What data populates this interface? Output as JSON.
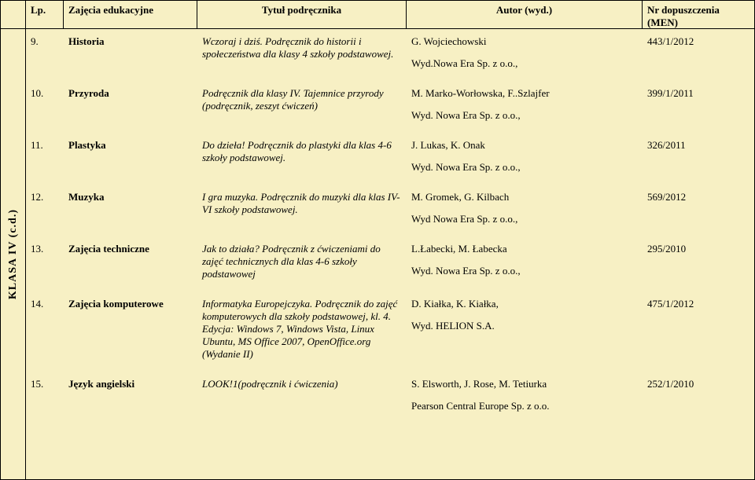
{
  "bg": "#f7f0c4",
  "header": {
    "lp": "Lp.",
    "subject": "Zajęcia edukacyjne",
    "title": "Tytuł podręcznika",
    "author": "Autor (wyd.)",
    "nr": "Nr dopuszczenia (MEN)"
  },
  "sidebar_label": "KLASA IV (c.d.)",
  "rows": [
    {
      "lp": "9.",
      "subject": "Historia",
      "title": "Wczoraj i dziś. Podręcznik do historii i społeczeństwa dla klasy 4 szkoły podstawowej.",
      "author": "G. Wojciechowski",
      "publisher": "Wyd.Nowa Era Sp. z o.o.,",
      "nr": "443/1/2012"
    },
    {
      "lp": "10.",
      "subject": "Przyroda",
      "title": "Podręcznik dla klasy IV. Tajemnice przyrody (podręcznik, zeszyt ćwiczeń)",
      "author": "M. Marko-Worłowska, F..Szlajfer",
      "publisher": "Wyd. Nowa Era  Sp. z o.o.,",
      "nr": "399/1/2011"
    },
    {
      "lp": "11.",
      "subject": "Plastyka",
      "title": "Do dzieła! Podręcznik do plastyki dla klas 4-6 szkoły podstawowej.",
      "author": "J. Lukas, K. Onak",
      "publisher": "Wyd. Nowa Era Sp. z o.o.,",
      "nr": "326/2011"
    },
    {
      "lp": "12.",
      "subject": "Muzyka",
      "title": "I gra muzyka. Podręcznik do muzyki dla klas IV-VI szkoły podstawowej.",
      "author": "M. Gromek, G. Kilbach",
      "publisher": "Wyd Nowa Era Sp. z o.o.,",
      "nr": "569/2012"
    },
    {
      "lp": "13.",
      "subject": "Zajęcia techniczne",
      "title": "Jak to działa? Podręcznik z ćwiczeniami do zajęć technicznych dla klas 4-6 szkoły podstawowej",
      "author": "L.Łabecki, M. Łabecka",
      "publisher": "Wyd. Nowa Era Sp. z o.o.,",
      "nr": "295/2010"
    },
    {
      "lp": "14.",
      "subject": "Zajęcia komputerowe",
      "title": "Informatyka Europejczyka. Podręcznik do zajęć komputerowych dla szkoły podstawowej, kl. 4. Edycja: Windows 7, Windows Vista, Linux Ubuntu, MS Office 2007, OpenOffice.org (Wydanie II)",
      "author": "D. Kiałka, K. Kiałka,",
      "publisher": "Wyd. HELION S.A.",
      "nr": "475/1/2012"
    },
    {
      "lp": "15.",
      "subject": "Język angielski",
      "title": "LOOK!1(podręcznik i ćwiczenia)",
      "author": "S. Elsworth, J. Rose, M. Tetiurka",
      "publisher": "Pearson Central Europe Sp. z o.o.",
      "nr": "252/1/2010"
    }
  ]
}
